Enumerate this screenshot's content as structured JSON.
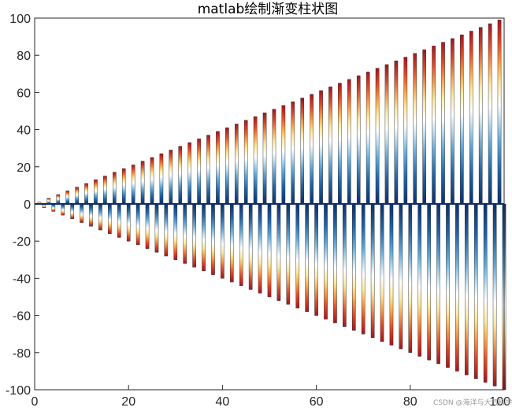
{
  "chart_data": {
    "type": "bar",
    "title": "matlab绘制渐变柱状图",
    "xlabel": "",
    "ylabel": "",
    "xlim": [
      0,
      100
    ],
    "ylim": [
      -100,
      100
    ],
    "xticks": [
      "0",
      "20",
      "40",
      "60",
      "80",
      "100"
    ],
    "yticks": [
      "100",
      "80",
      "60",
      "40",
      "20",
      "0",
      "-20",
      "-40",
      "-60",
      "-80",
      "-100"
    ],
    "grid": false,
    "legend": "none",
    "gradient": "dark blue at zero through white to dark red at bar ends",
    "colors": {
      "zero": "#0c2e6b",
      "mid": "#ffffff",
      "end": "#a2161d"
    },
    "bar_width": 0.7,
    "series": [
      {
        "x": [
          1,
          3,
          5,
          7,
          9,
          11,
          13,
          15,
          17,
          19,
          21,
          23,
          25,
          27,
          29,
          31,
          33,
          35,
          37,
          39,
          41,
          43,
          45,
          47,
          49,
          51,
          53,
          55,
          57,
          59,
          61,
          63,
          65,
          67,
          69,
          71,
          73,
          75,
          77,
          79,
          81,
          83,
          85,
          87,
          89,
          91,
          93,
          95,
          97,
          99
        ],
        "values": [
          1,
          3,
          5,
          7,
          9,
          11,
          13,
          15,
          17,
          19,
          21,
          23,
          25,
          27,
          29,
          31,
          33,
          35,
          37,
          39,
          41,
          43,
          45,
          47,
          49,
          51,
          53,
          55,
          57,
          59,
          61,
          63,
          65,
          67,
          69,
          71,
          73,
          75,
          77,
          79,
          81,
          83,
          85,
          87,
          89,
          91,
          93,
          95,
          97,
          99
        ]
      },
      {
        "x": [
          2,
          4,
          6,
          8,
          10,
          12,
          14,
          16,
          18,
          20,
          22,
          24,
          26,
          28,
          30,
          32,
          34,
          36,
          38,
          40,
          42,
          44,
          46,
          48,
          50,
          52,
          54,
          56,
          58,
          60,
          62,
          64,
          66,
          68,
          70,
          72,
          74,
          76,
          78,
          80,
          82,
          84,
          86,
          88,
          90,
          92,
          94,
          96,
          98,
          100
        ],
        "values": [
          -2,
          -4,
          -6,
          -8,
          -10,
          -12,
          -14,
          -16,
          -18,
          -20,
          -22,
          -24,
          -26,
          -28,
          -30,
          -32,
          -34,
          -36,
          -38,
          -40,
          -42,
          -44,
          -46,
          -48,
          -50,
          -52,
          -54,
          -56,
          -58,
          -60,
          -62,
          -64,
          -66,
          -68,
          -70,
          -72,
          -74,
          -76,
          -78,
          -80,
          -82,
          -84,
          -86,
          -88,
          -90,
          -92,
          -94,
          -96,
          -98,
          -100
        ]
      }
    ]
  },
  "watermark": "CSDN @海洋与大气科学"
}
